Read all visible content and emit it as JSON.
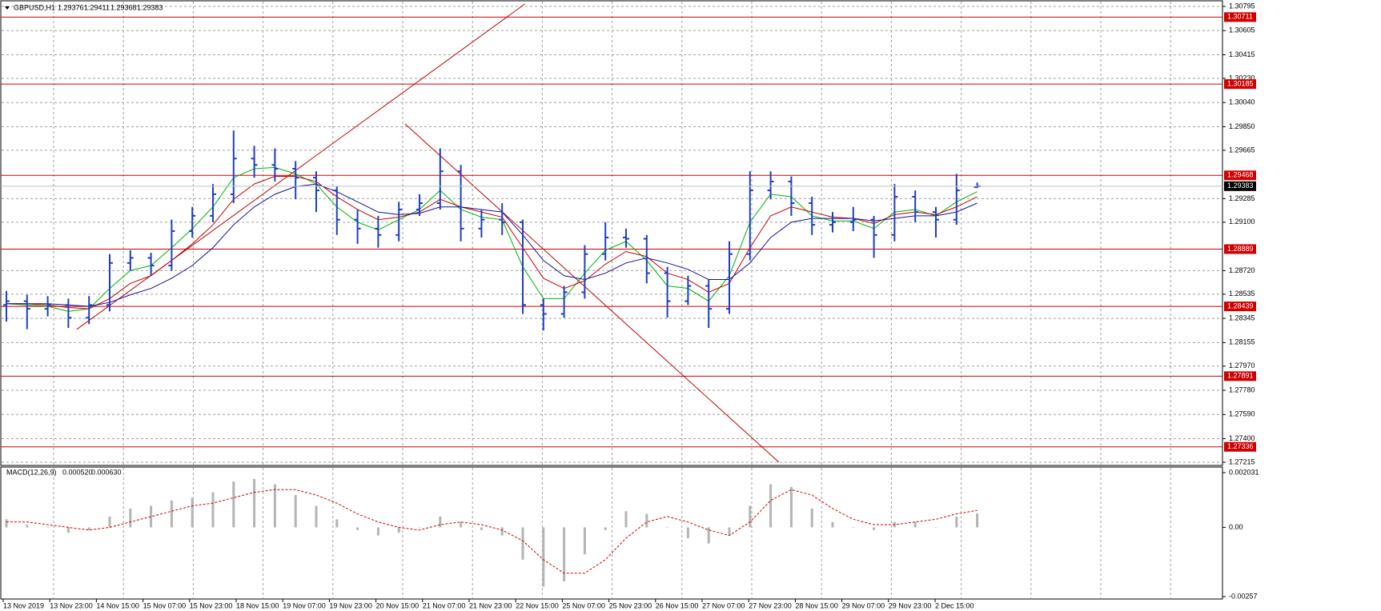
{
  "chart_data": {
    "type": "candlestick",
    "symbol": "GBPUSD,H1",
    "ylim": [
      1.27215,
      1.30795
    ],
    "yticks": [
      1.30795,
      1.30605,
      1.30415,
      {
        "value": 1.3023,
        "label": "1.30230"
      },
      {
        "value": 1.3004,
        "label": "1.30040"
      },
      {
        "value": 1.2985,
        "label": "1.29850"
      },
      1.29665,
      1.29285,
      {
        "value": 1.291,
        "label": "1.29100"
      },
      {
        "value": 1.2872,
        "label": "1.28720"
      },
      1.28535,
      1.28345,
      1.28155,
      {
        "value": 1.2797,
        "label": "1.27970"
      },
      {
        "value": 1.2778,
        "label": "1.27780"
      },
      {
        "value": 1.2759,
        "label": "1.27590"
      },
      {
        "value": 1.274,
        "label": "1.27400"
      },
      1.27215
    ],
    "grid": true,
    "candle_color": "#1c3fc4",
    "x_labels": [
      "13 Nov 2019",
      "13 Nov 23:00",
      "14 Nov 15:00",
      "15 Nov 07:00",
      "15 Nov 23:00",
      "18 Nov 15:00",
      "19 Nov 07:00",
      "19 Nov 23:00",
      "20 Nov 15:00",
      "21 Nov 07:00",
      "21 Nov 23:00",
      "22 Nov 15:00",
      "25 Nov 07:00",
      "25 Nov 23:00",
      "26 Nov 15:00",
      "27 Nov 07:00",
      "27 Nov 23:00",
      "28 Nov 15:00",
      "29 Nov 07:00",
      "29 Nov 23:00",
      "2 Dec 15:00"
    ],
    "open": [
      1.2845,
      1.2848,
      1.2842,
      1.2845,
      1.2835,
      1.2845,
      1.2878,
      1.2882,
      1.2876,
      1.2903,
      1.2915,
      1.2932,
      1.296,
      1.2955,
      1.2952,
      1.2945,
      1.2935,
      1.2912,
      1.2905,
      1.29,
      1.292,
      1.2925,
      1.295,
      1.2905,
      1.2912,
      1.291,
      1.2845,
      1.2838,
      1.2855,
      1.2885,
      1.2898,
      1.2897,
      1.287,
      1.2848,
      1.286,
      1.2842,
      1.2885,
      1.2935,
      1.2942,
      1.2925,
      1.2908,
      1.291,
      1.2912,
      1.29,
      1.293,
      1.2918,
      1.2912,
      1.29376
    ],
    "high": [
      1.2856,
      1.2853,
      1.2852,
      1.285,
      1.2852,
      1.2885,
      1.2888,
      1.2886,
      1.2912,
      1.2922,
      1.294,
      1.2982,
      1.297,
      1.2968,
      1.2958,
      1.295,
      1.2938,
      1.292,
      1.2915,
      1.2926,
      1.2932,
      1.2968,
      1.2955,
      1.292,
      1.2925,
      1.2912,
      1.285,
      1.286,
      1.2892,
      1.291,
      1.2905,
      1.29,
      1.2875,
      1.2868,
      1.2865,
      1.2895,
      1.295,
      1.295,
      1.2946,
      1.293,
      1.2918,
      1.2922,
      1.2915,
      1.294,
      1.2935,
      1.2922,
      1.2948,
      1.29411
    ],
    "low": [
      1.2832,
      1.2826,
      1.2836,
      1.2827,
      1.283,
      1.284,
      1.2872,
      1.2868,
      1.2872,
      1.2898,
      1.291,
      1.2925,
      1.2945,
      1.2942,
      1.2928,
      1.2918,
      1.29,
      1.2893,
      1.289,
      1.2895,
      1.2915,
      1.292,
      1.2895,
      1.2898,
      1.29,
      1.2838,
      1.2825,
      1.2835,
      1.285,
      1.288,
      1.289,
      1.2862,
      1.2835,
      1.2845,
      1.2827,
      1.2838,
      1.288,
      1.2928,
      1.2915,
      1.29,
      1.2902,
      1.2903,
      1.2882,
      1.2895,
      1.291,
      1.2898,
      1.2908,
      1.29368
    ],
    "close": [
      1.2848,
      1.2842,
      1.2845,
      1.2835,
      1.2845,
      1.2878,
      1.2882,
      1.2876,
      1.2903,
      1.2915,
      1.2932,
      1.296,
      1.2955,
      1.2952,
      1.2945,
      1.2935,
      1.2912,
      1.2905,
      1.29,
      1.292,
      1.2925,
      1.295,
      1.2905,
      1.2912,
      1.291,
      1.2845,
      1.2838,
      1.2855,
      1.2885,
      1.2898,
      1.2897,
      1.287,
      1.2848,
      1.286,
      1.2842,
      1.2885,
      1.2935,
      1.2942,
      1.2925,
      1.2908,
      1.291,
      1.2912,
      1.29,
      1.293,
      1.2918,
      1.2912,
      1.2935,
      1.29383
    ],
    "series": [
      {
        "color": "#00b400",
        "values": [
          1.2846,
          1.2845,
          1.2844,
          1.284,
          1.2842,
          1.2858,
          1.2872,
          1.2876,
          1.289,
          1.2905,
          1.2922,
          1.2945,
          1.2952,
          1.2953,
          1.2948,
          1.294,
          1.2922,
          1.291,
          1.2904,
          1.2912,
          1.292,
          1.2935,
          1.292,
          1.2914,
          1.2912,
          1.2875,
          1.285,
          1.285,
          1.287,
          1.2888,
          1.2895,
          1.288,
          1.286,
          1.2858,
          1.2848,
          1.2868,
          1.291,
          1.2932,
          1.293,
          1.2915,
          1.2911,
          1.2911,
          1.2905,
          1.2918,
          1.292,
          1.2915,
          1.2926,
          1.2934
        ]
      },
      {
        "color": "#c80000",
        "values": [
          1.2846,
          1.2846,
          1.2845,
          1.2843,
          1.2842,
          1.285,
          1.2862,
          1.2868,
          1.288,
          1.2893,
          1.2908,
          1.2928,
          1.294,
          1.2946,
          1.2946,
          1.2942,
          1.293,
          1.292,
          1.2912,
          1.2914,
          1.2918,
          1.2928,
          1.2922,
          1.2918,
          1.2914,
          1.289,
          1.2866,
          1.2858,
          1.2864,
          1.2877,
          1.2887,
          1.2883,
          1.287,
          1.2865,
          1.2855,
          1.2862,
          1.289,
          1.2915,
          1.2922,
          1.2918,
          1.2914,
          1.2913,
          1.2909,
          1.2916,
          1.2918,
          1.2916,
          1.2922,
          1.293
        ]
      },
      {
        "color": "#1010a0",
        "values": [
          1.2846,
          1.2846,
          1.2846,
          1.2845,
          1.2844,
          1.2847,
          1.2853,
          1.2858,
          1.2866,
          1.2876,
          1.289,
          1.2908,
          1.2922,
          1.2932,
          1.2938,
          1.294,
          1.2934,
          1.2926,
          1.2918,
          1.2916,
          1.2917,
          1.2922,
          1.2922,
          1.292,
          1.2918,
          1.29,
          1.288,
          1.2868,
          1.2865,
          1.287,
          1.2878,
          1.2882,
          1.2878,
          1.2873,
          1.2865,
          1.2865,
          1.2878,
          1.2898,
          1.291,
          1.2913,
          1.2913,
          1.2913,
          1.2911,
          1.2913,
          1.2915,
          1.2915,
          1.2918,
          1.2925
        ]
      }
    ],
    "hlines": {
      "color": "#d00000",
      "values": [
        1.30711,
        1.30185,
        1.29468,
        1.28889,
        1.28439,
        1.27891,
        1.27336
      ]
    },
    "trendlines": {
      "color": "#c00000",
      "lines": [
        {
          "x": [
            3.4,
            25.1
          ],
          "y": [
            1.28258,
            1.30814
          ]
        },
        {
          "x": [
            19.3,
            37.4
          ],
          "y": [
            1.29872,
            1.27215
          ]
        }
      ]
    },
    "macd": {
      "name": "MACD(12,26,9)",
      "current_labels": [
        "0.000520",
        "0.000630"
      ],
      "ylim": [
        -0.00257,
        0.002031
      ],
      "yticks": [
        0.002031,
        {
          "value": 0,
          "label": "0.00"
        },
        -0.00257
      ],
      "histogram_color": "#b4b4b4",
      "signal_color": "#d00000",
      "histogram": [
        0.0003,
        0.0001,
        0.0,
        -0.0002,
        -0.0001,
        0.0004,
        0.0007,
        0.0008,
        0.001,
        0.0011,
        0.0013,
        0.0017,
        0.0018,
        0.0016,
        0.0012,
        0.0008,
        0.0003,
        -0.0001,
        -0.0003,
        -0.0002,
        0.0,
        0.0004,
        0.0002,
        -0.0001,
        -0.0003,
        -0.0012,
        -0.0022,
        -0.002,
        -0.001,
        -0.0001,
        0.0006,
        0.0005,
        0.0,
        -0.0004,
        -0.0006,
        -0.0003,
        0.0008,
        0.0016,
        0.0015,
        0.0007,
        0.0002,
        0.0,
        -0.0001,
        0.0002,
        0.0002,
        0.0,
        0.0004,
        0.00052
      ],
      "signal": [
        0.0002,
        0.0002,
        0.0001,
        0.0,
        -0.0001,
        0.0,
        0.0002,
        0.0004,
        0.0006,
        0.0008,
        0.0009,
        0.0011,
        0.0013,
        0.0014,
        0.0014,
        0.0012,
        0.0009,
        0.0005,
        0.0002,
        0.0,
        -0.0001,
        0.0001,
        0.0002,
        0.0001,
        -0.0001,
        -0.0005,
        -0.0012,
        -0.0017,
        -0.0017,
        -0.0012,
        -0.0004,
        0.0002,
        0.0004,
        0.0002,
        -0.0001,
        -0.0003,
        0.0002,
        0.001,
        0.0014,
        0.0012,
        0.0007,
        0.0003,
        0.0001,
        0.0001,
        0.0002,
        0.0003,
        0.0005,
        0.00063
      ]
    }
  }
}
